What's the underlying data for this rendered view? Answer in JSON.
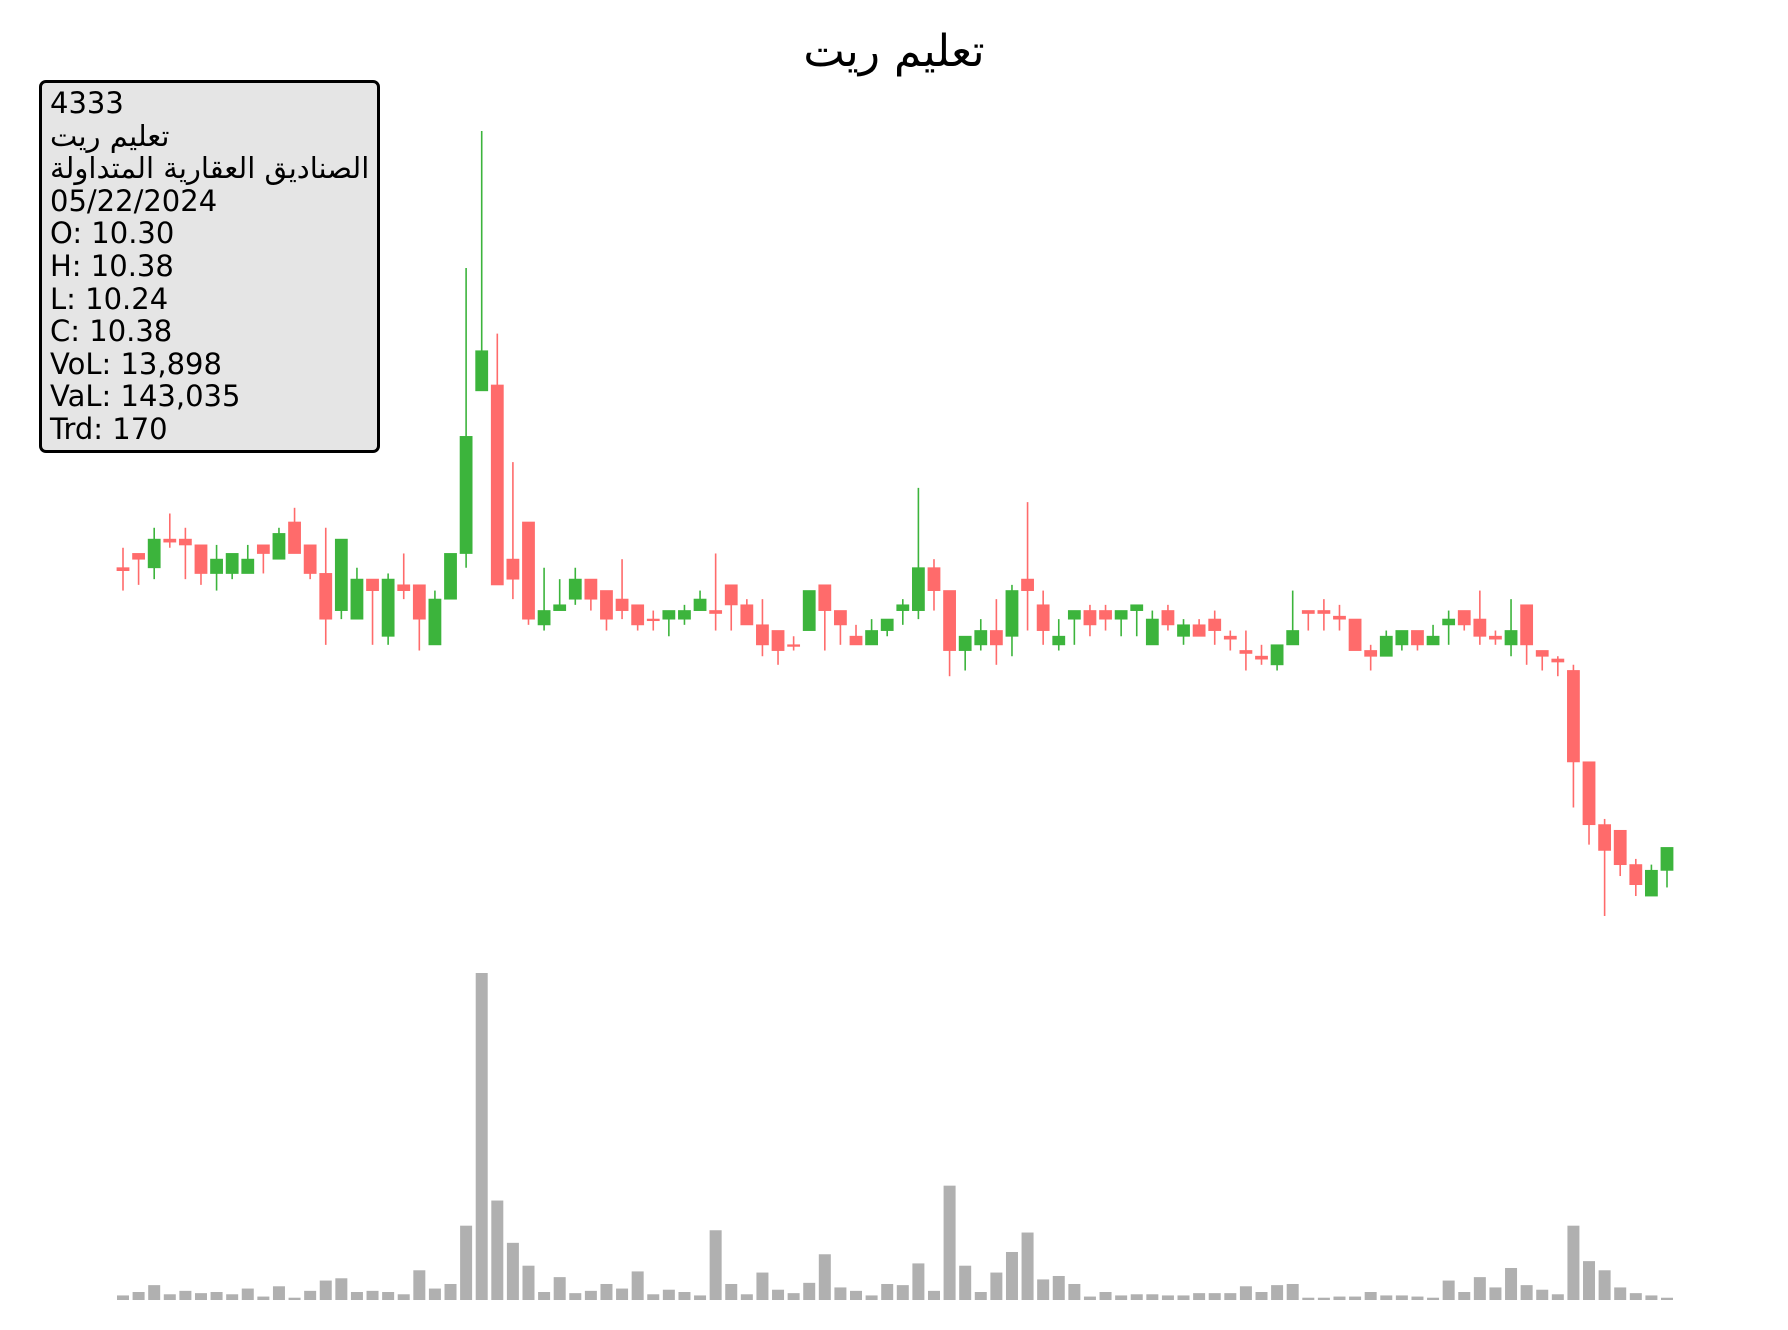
{
  "chart_data": {
    "type": "candlestick",
    "title": "تعليم ريت",
    "up_color": "#3cb43c",
    "down_color": "#ff6b6b",
    "volume_color": "#b0b0b0",
    "info": [
      "4333",
      "تعليم ريت",
      "الصناديق العقارية المتداولة",
      "05/22/2024",
      "O: 10.30",
      "H: 10.38",
      "L: 10.24",
      "C: 10.38",
      "VoL: 13,898",
      "VaL: 143,035",
      "Trd: 170"
    ],
    "open": [
      11.36,
      11.41,
      11.36,
      11.46,
      11.46,
      11.44,
      11.34,
      11.34,
      11.34,
      11.44,
      11.39,
      11.52,
      11.44,
      11.34,
      11.21,
      11.18,
      11.32,
      11.12,
      11.3,
      11.3,
      11.09,
      11.25,
      11.41,
      11.98,
      12.0,
      11.39,
      11.52,
      11.16,
      11.21,
      11.25,
      11.32,
      11.28,
      11.25,
      11.23,
      11.18,
      11.18,
      11.18,
      11.21,
      11.21,
      11.3,
      11.23,
      11.16,
      11.14,
      11.09,
      11.14,
      11.3,
      11.21,
      11.12,
      11.09,
      11.14,
      11.21,
      11.21,
      11.36,
      11.28,
      11.07,
      11.09,
      11.14,
      11.12,
      11.32,
      11.23,
      11.09,
      11.18,
      11.21,
      11.21,
      11.18,
      11.21,
      11.09,
      11.21,
      11.12,
      11.16,
      11.18,
      11.12,
      11.07,
      11.05,
      11.02,
      11.09,
      11.21,
      11.21,
      11.19,
      11.18,
      11.07,
      11.05,
      11.09,
      11.14,
      11.09,
      11.16,
      11.21,
      11.18,
      11.12,
      11.09,
      11.23,
      11.07,
      11.04,
      11.0,
      10.68,
      10.46,
      10.44,
      10.32,
      10.21,
      10.3
    ],
    "high": [
      11.43,
      11.41,
      11.5,
      11.55,
      11.5,
      11.44,
      11.44,
      11.41,
      11.44,
      11.44,
      11.5,
      11.57,
      11.44,
      11.5,
      11.46,
      11.36,
      11.32,
      11.34,
      11.41,
      11.3,
      11.28,
      11.41,
      12.41,
      12.89,
      12.18,
      11.73,
      11.52,
      11.36,
      11.32,
      11.36,
      11.32,
      11.28,
      11.39,
      11.23,
      11.21,
      11.21,
      11.23,
      11.28,
      11.41,
      11.3,
      11.25,
      11.25,
      11.14,
      11.12,
      11.28,
      11.3,
      11.21,
      11.16,
      11.18,
      11.18,
      11.25,
      11.64,
      11.39,
      11.28,
      11.12,
      11.18,
      11.25,
      11.3,
      11.59,
      11.28,
      11.18,
      11.21,
      11.23,
      11.23,
      11.21,
      11.23,
      11.21,
      11.23,
      11.18,
      11.18,
      11.21,
      11.14,
      11.14,
      11.09,
      11.09,
      11.28,
      11.21,
      11.25,
      11.23,
      11.18,
      11.09,
      11.14,
      11.14,
      11.14,
      11.16,
      11.21,
      11.21,
      11.28,
      11.14,
      11.25,
      11.23,
      11.07,
      11.05,
      11.02,
      10.68,
      10.48,
      10.44,
      10.34,
      10.32,
      10.38
    ],
    "low": [
      11.28,
      11.3,
      11.32,
      11.43,
      11.32,
      11.3,
      11.28,
      11.32,
      11.34,
      11.34,
      11.39,
      11.41,
      11.32,
      11.09,
      11.18,
      11.18,
      11.09,
      11.09,
      11.25,
      11.07,
      11.09,
      11.25,
      11.36,
      11.98,
      11.3,
      11.25,
      11.16,
      11.14,
      11.21,
      11.23,
      11.21,
      11.14,
      11.18,
      11.14,
      11.14,
      11.12,
      11.16,
      11.21,
      11.14,
      11.14,
      11.16,
      11.05,
      11.02,
      11.07,
      11.14,
      11.07,
      11.09,
      11.09,
      11.09,
      11.12,
      11.16,
      11.18,
      11.21,
      10.98,
      11.0,
      11.07,
      11.02,
      11.05,
      11.14,
      11.09,
      11.07,
      11.09,
      11.12,
      11.14,
      11.12,
      11.12,
      11.09,
      11.14,
      11.09,
      11.12,
      11.09,
      11.07,
      11.0,
      11.02,
      11.0,
      11.09,
      11.14,
      11.14,
      11.14,
      11.07,
      11.0,
      11.05,
      11.07,
      11.07,
      11.09,
      11.09,
      11.14,
      11.09,
      11.09,
      11.05,
      11.02,
      11.0,
      10.98,
      10.52,
      10.39,
      10.14,
      10.28,
      10.21,
      10.21,
      10.24
    ],
    "close": [
      11.35,
      11.39,
      11.46,
      11.45,
      11.44,
      11.34,
      11.39,
      11.41,
      11.39,
      11.41,
      11.48,
      11.41,
      11.34,
      11.18,
      11.46,
      11.32,
      11.28,
      11.32,
      11.28,
      11.18,
      11.25,
      11.41,
      11.82,
      12.12,
      11.3,
      11.32,
      11.18,
      11.21,
      11.23,
      11.32,
      11.25,
      11.18,
      11.21,
      11.16,
      11.18,
      11.21,
      11.21,
      11.25,
      11.2,
      11.23,
      11.16,
      11.09,
      11.07,
      11.09,
      11.28,
      11.21,
      11.16,
      11.09,
      11.14,
      11.18,
      11.23,
      11.36,
      11.28,
      11.07,
      11.12,
      11.14,
      11.09,
      11.28,
      11.28,
      11.14,
      11.12,
      11.21,
      11.16,
      11.18,
      11.21,
      11.23,
      11.18,
      11.16,
      11.16,
      11.12,
      11.14,
      11.11,
      11.06,
      11.04,
      11.09,
      11.14,
      11.2,
      11.2,
      11.18,
      11.07,
      11.05,
      11.12,
      11.14,
      11.09,
      11.12,
      11.18,
      11.16,
      11.12,
      11.11,
      11.14,
      11.09,
      11.05,
      11.03,
      10.68,
      10.46,
      10.37,
      10.32,
      10.25,
      10.3,
      10.38
    ],
    "volume": [
      28000,
      49000,
      91000,
      35000,
      56000,
      42000,
      49000,
      35000,
      70000,
      21000,
      84000,
      14000,
      56000,
      119000,
      133000,
      49000,
      56000,
      49000,
      35000,
      182000,
      70000,
      98000,
      455000,
      2002000,
      609000,
      350000,
      210000,
      49000,
      140000,
      42000,
      56000,
      98000,
      70000,
      175000,
      35000,
      63000,
      49000,
      28000,
      427000,
      98000,
      35000,
      168000,
      63000,
      42000,
      105000,
      280000,
      77000,
      56000,
      28000,
      98000,
      91000,
      224000,
      56000,
      700000,
      210000,
      49000,
      168000,
      294000,
      413000,
      126000,
      147000,
      98000,
      21000,
      49000,
      28000,
      35000,
      35000,
      28000,
      28000,
      42000,
      42000,
      42000,
      84000,
      49000,
      91000,
      98000,
      14000,
      14000,
      21000,
      21000,
      49000,
      28000,
      28000,
      21000,
      14000,
      119000,
      49000,
      140000,
      77000,
      196000,
      91000,
      63000,
      35000,
      455000,
      238000,
      182000,
      77000,
      42000,
      28000,
      13898
    ]
  }
}
